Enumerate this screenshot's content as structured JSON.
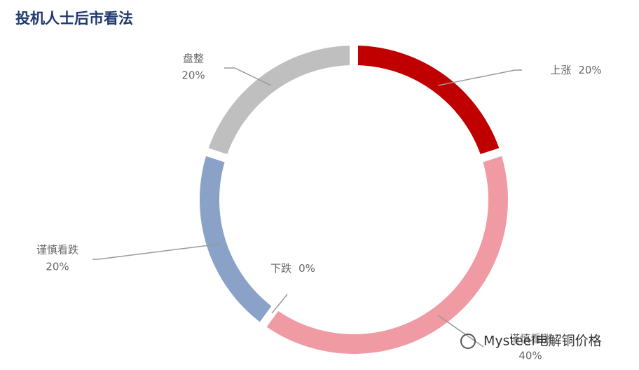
{
  "chart_data": {
    "type": "donut",
    "title": "投机人士后市看法",
    "categories": [
      "上涨",
      "谨慎看涨",
      "下跌",
      "谨慎看跌",
      "盘整"
    ],
    "values": [
      20,
      40,
      0,
      20,
      20
    ],
    "value_labels": [
      "20%",
      "40%",
      "0%",
      "20%",
      "20%"
    ],
    "colors": [
      "#c00000",
      "#f09aa3",
      "#d9d9d9",
      "#8aa2c8",
      "#bfbfbf"
    ],
    "watermark": "Mysteel电解铜价格"
  }
}
